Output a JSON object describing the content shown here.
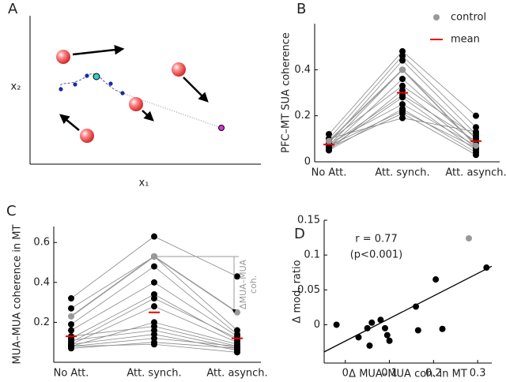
{
  "diagram": {
    "label": "A",
    "xlabel": "x₁",
    "ylabel": "x₂"
  },
  "chart_data": [
    {
      "type": "line",
      "label": "B",
      "ylabel": "PFC–MT SUA coherence",
      "categories": [
        "No Att.",
        "Att. synch.",
        "Att. asynch."
      ],
      "ylim": [
        0,
        0.6
      ],
      "yticks": [
        0,
        0.2,
        0.4
      ],
      "line_color": "#888",
      "legend": "upper right",
      "series": [
        {
          "color": "#000",
          "values": [
            0.12,
            0.48,
            0.2
          ]
        },
        {
          "color": "#000",
          "values": [
            0.1,
            0.46,
            0.15
          ]
        },
        {
          "color": "#000",
          "values": [
            0.08,
            0.44,
            0.12
          ]
        },
        {
          "color": "#000",
          "values": [
            0.07,
            0.4,
            0.1
          ]
        },
        {
          "color": "#000",
          "values": [
            0.06,
            0.36,
            0.08
          ]
        },
        {
          "color": "#000",
          "values": [
            0.09,
            0.33,
            0.11
          ]
        },
        {
          "color": "#000",
          "values": [
            0.05,
            0.31,
            0.06
          ]
        },
        {
          "color": "#000",
          "values": [
            0.07,
            0.29,
            0.09
          ]
        },
        {
          "color": "#000",
          "values": [
            0.06,
            0.28,
            0.05
          ]
        },
        {
          "color": "#000",
          "values": [
            0.08,
            0.25,
            0.07
          ]
        },
        {
          "color": "#000",
          "values": [
            0.05,
            0.23,
            0.04
          ]
        },
        {
          "color": "#000",
          "values": [
            0.07,
            0.22,
            0.06
          ]
        },
        {
          "color": "#000",
          "values": [
            0.06,
            0.21,
            0.03
          ]
        },
        {
          "color": "#000",
          "values": [
            0.1,
            0.19,
            0.13
          ]
        },
        {
          "name": "control",
          "color": "#999",
          "values": [
            0.09,
            0.4,
            0.07
          ]
        },
        {
          "name": "mean",
          "color": "#e00",
          "marker": "dash",
          "values": [
            0.075,
            0.3,
            0.09
          ]
        }
      ]
    },
    {
      "type": "line",
      "label": "C",
      "ylabel": "MUA–MUA coherence in MT",
      "categories": [
        "No Att.",
        "Att. synch.",
        "Att. asynch."
      ],
      "ylim": [
        0,
        0.68
      ],
      "yticks": [
        0.2,
        0.4,
        0.6
      ],
      "line_color": "#888",
      "annotation": [
        "ΔMUA–MUA",
        "coh."
      ],
      "series": [
        {
          "color": "#000",
          "values": [
            0.32,
            0.63,
            0.43
          ]
        },
        {
          "color": "#000",
          "values": [
            0.27,
            0.53,
            0.16
          ]
        },
        {
          "color": "#000",
          "values": [
            0.19,
            0.48,
            0.14
          ]
        },
        {
          "color": "#000",
          "values": [
            0.16,
            0.4,
            0.13
          ]
        },
        {
          "color": "#000",
          "values": [
            0.12,
            0.34,
            0.11
          ]
        },
        {
          "color": "#000",
          "values": [
            0.1,
            0.32,
            0.12
          ]
        },
        {
          "color": "#000",
          "values": [
            0.09,
            0.28,
            0.1
          ]
        },
        {
          "color": "#000",
          "values": [
            0.08,
            0.2,
            0.09
          ]
        },
        {
          "color": "#000",
          "values": [
            0.13,
            0.18,
            0.08
          ]
        },
        {
          "color": "#000",
          "values": [
            0.11,
            0.16,
            0.07
          ]
        },
        {
          "color": "#000",
          "values": [
            0.09,
            0.14,
            0.06
          ]
        },
        {
          "color": "#000",
          "values": [
            0.08,
            0.12,
            0.08
          ]
        },
        {
          "color": "#000",
          "values": [
            0.07,
            0.1,
            0.07
          ]
        },
        {
          "color": "#000",
          "values": [
            0.08,
            0.09,
            0.05
          ]
        },
        {
          "color": "#999",
          "values": [
            0.23,
            0.53,
            0.25
          ]
        },
        {
          "color": "#e00",
          "marker": "dash",
          "values": [
            0.13,
            0.25,
            0.12
          ]
        }
      ]
    },
    {
      "type": "scatter",
      "label": "D",
      "xlabel": "Δ MUA–MUA coh. in MT",
      "ylabel": "Δ mod. ratio",
      "xlim": [
        -0.048,
        0.332
      ],
      "xticks": [
        0,
        0.1,
        0.2,
        0.3
      ],
      "ylim": [
        -0.055,
        0.15
      ],
      "yticks": [
        0,
        0.05,
        0.1,
        0.15
      ],
      "annotations": [
        "r = 0.77",
        "(p<0.001)"
      ],
      "fit_line": {
        "x": [
          -0.048,
          0.332
        ],
        "y": [
          -0.039,
          0.084
        ]
      },
      "series": [
        {
          "color": "#000",
          "x": [
            -0.02,
            0.03,
            0.05,
            0.055,
            0.06,
            0.08,
            0.09,
            0.095,
            0.1,
            0.16,
            0.165,
            0.205,
            0.22,
            0.32
          ],
          "values": [
            0.0,
            -0.018,
            -0.005,
            -0.03,
            0.003,
            0.007,
            -0.005,
            -0.015,
            -0.023,
            0.026,
            -0.008,
            0.065,
            -0.006,
            0.082
          ]
        },
        {
          "color": "#999",
          "x": [
            0.28
          ],
          "values": [
            0.124
          ]
        }
      ]
    }
  ]
}
